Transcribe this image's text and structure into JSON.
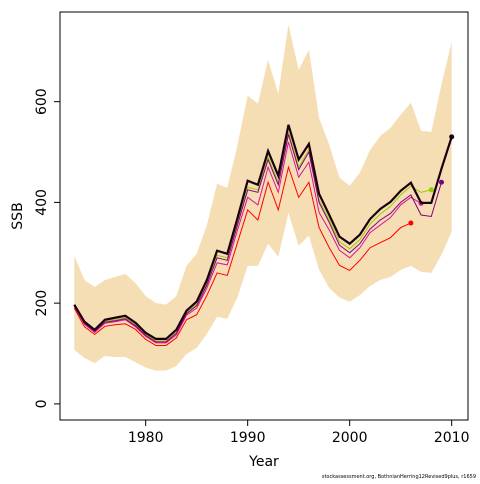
{
  "chart_data": {
    "type": "line",
    "x_label": "Year",
    "y_label": "SSB",
    "footnote": "stockassessment.org, BothnianHerring12Revised9plus, r1659",
    "xlim": [
      1971.6,
      2011.6
    ],
    "ylim": [
      -32,
      778
    ],
    "xticks": [
      1980,
      1990,
      2000,
      2010
    ],
    "yticks": [
      0,
      200,
      400,
      600
    ],
    "x": [
      1973,
      1974,
      1975,
      1976,
      1977,
      1978,
      1979,
      1980,
      1981,
      1982,
      1983,
      1984,
      1985,
      1986,
      1987,
      1988,
      1989,
      1990,
      1991,
      1992,
      1993,
      1994,
      1995,
      1996,
      1997,
      1998,
      1999,
      2000,
      2001,
      2002,
      2003,
      2004,
      2005,
      2006,
      2007,
      2008,
      2009,
      2010
    ],
    "band": {
      "color": "#f5deb3",
      "upper": [
        294,
        246,
        232,
        246,
        252,
        258,
        240,
        214,
        200,
        197,
        214,
        274,
        298,
        355,
        437,
        429,
        514,
        612,
        596,
        683,
        616,
        753,
        663,
        703,
        568,
        514,
        449,
        433,
        459,
        504,
        532,
        548,
        574,
        598,
        542,
        540,
        634,
        719
      ],
      "lower": [
        107,
        91,
        81,
        95,
        93,
        93,
        83,
        72,
        66,
        66,
        75,
        99,
        111,
        139,
        173,
        169,
        212,
        274,
        274,
        318,
        292,
        379,
        314,
        334,
        266,
        230,
        211,
        203,
        216,
        234,
        246,
        252,
        266,
        274,
        262,
        260,
        296,
        342
      ]
    },
    "series": [
      {
        "color": "#ff0000",
        "values": [
          190,
          153,
          138,
          154,
          157,
          159,
          148,
          128,
          116,
          116,
          131,
          167,
          177,
          215,
          260,
          255,
          320,
          385,
          365,
          440,
          385,
          470,
          410,
          440,
          350,
          310,
          275,
          265,
          285,
          310,
          320,
          330,
          350,
          359,
          null,
          null,
          null,
          null
        ]
      },
      {
        "color": "#e0119a",
        "values": [
          193,
          158,
          142,
          160,
          163,
          167,
          153,
          134,
          121,
          121,
          137,
          176,
          190,
          230,
          280,
          276,
          345,
          410,
          395,
          470,
          420,
          520,
          450,
          480,
          380,
          345,
          305,
          290,
          310,
          340,
          355,
          370,
          395,
          410,
          398,
          null,
          null,
          null
        ]
      },
      {
        "color": "#99cc00",
        "values": [
          195,
          161,
          145,
          164,
          167,
          171,
          157,
          138,
          125,
          125,
          142,
          181,
          198,
          240,
          295,
          290,
          360,
          430,
          425,
          490,
          440,
          540,
          470,
          505,
          405,
          365,
          322,
          308,
          326,
          357,
          377,
          392,
          415,
          432,
          420,
          425,
          null,
          null
        ]
      },
      {
        "color": "#800080",
        "values": [
          194,
          160,
          144,
          162,
          165,
          169,
          155,
          136,
          123,
          123,
          140,
          179,
          195,
          236,
          290,
          285,
          355,
          425,
          420,
          485,
          435,
          535,
          465,
          500,
          400,
          360,
          315,
          300,
          318,
          347,
          365,
          378,
          400,
          415,
          375,
          372,
          440,
          null
        ]
      },
      {
        "color": "#1a0010",
        "values": [
          197,
          163,
          147,
          167,
          171,
          175,
          161,
          141,
          129,
          129,
          147,
          185,
          203,
          246,
          304,
          298,
          369,
          443,
          435,
          502,
          453,
          554,
          485,
          516,
          417,
          375,
          332,
          318,
          336,
          367,
          387,
          401,
          423,
          439,
          399,
          399,
          467,
          530
        ]
      }
    ]
  }
}
